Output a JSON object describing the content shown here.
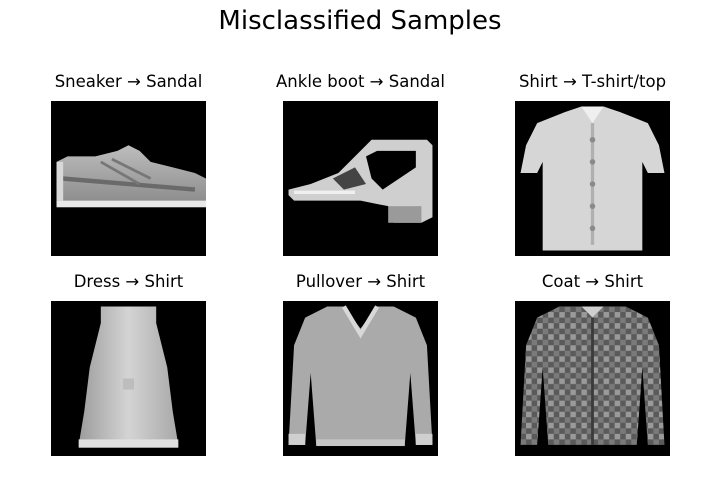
{
  "title": "Misclassified Samples",
  "samples": [
    {
      "label": "Sneaker → Sandal",
      "true_class": "Sneaker",
      "predicted_class": "Sandal",
      "image": "sneaker-image"
    },
    {
      "label": "Ankle boot → Sandal",
      "true_class": "Ankle boot",
      "predicted_class": "Sandal",
      "image": "ankle-boot-image"
    },
    {
      "label": "Shirt → T-shirt/top",
      "true_class": "Shirt",
      "predicted_class": "T-shirt/top",
      "image": "shirt-image"
    },
    {
      "label": "Dress → Shirt",
      "true_class": "Dress",
      "predicted_class": "Shirt",
      "image": "dress-image"
    },
    {
      "label": "Pullover → Shirt",
      "true_class": "Pullover",
      "predicted_class": "Shirt",
      "image": "pullover-image"
    },
    {
      "label": "Coat → Shirt",
      "true_class": "Coat",
      "predicted_class": "Shirt",
      "image": "coat-image"
    }
  ],
  "colors": {
    "background": "#ffffff",
    "image_background": "#000000",
    "text": "#000000"
  }
}
